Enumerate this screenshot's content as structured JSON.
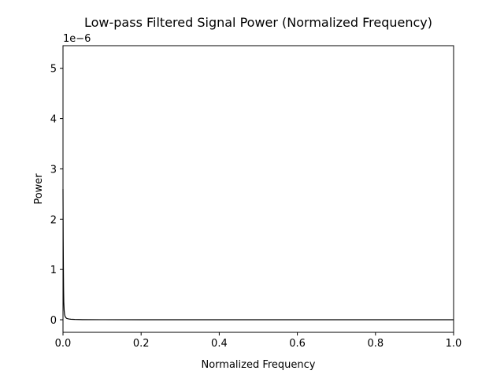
{
  "chart_data": {
    "type": "line",
    "title": "Low-pass Filtered Signal Power (Normalized Frequency)",
    "xlabel": "Normalized Frequency",
    "ylabel": "Power",
    "y_offset_label": "1e−6",
    "xlim": [
      0.0,
      1.0
    ],
    "ylim": [
      -2.5e-07,
      5.45e-06
    ],
    "x_ticks": [
      0.0,
      0.2,
      0.4,
      0.6,
      0.8,
      1.0
    ],
    "x_tick_labels": [
      "0.0",
      "0.2",
      "0.4",
      "0.6",
      "0.8",
      "1.0"
    ],
    "y_ticks": [
      0.0,
      1e-06,
      2e-06,
      3e-06,
      4e-06,
      5e-06
    ],
    "y_tick_labels": [
      "0",
      "1",
      "2",
      "3",
      "4",
      "5"
    ],
    "grid": false,
    "series": [
      {
        "name": "Power",
        "color": "#000000",
        "x": [
          0.0,
          0.0005,
          0.001,
          0.0015,
          0.002,
          0.003,
          0.004,
          0.005,
          0.006,
          0.008,
          0.01,
          0.015,
          0.02,
          0.03,
          0.05,
          0.1,
          0.2,
          0.4,
          0.6,
          0.8,
          1.0
        ],
        "y": [
          2.6e-06,
          1.6e-06,
          1e-06,
          6e-07,
          3.5e-07,
          1.8e-07,
          1.1e-07,
          7.5e-08,
          5.5e-08,
          3.5e-08,
          2.5e-08,
          1.5e-08,
          1e-08,
          6e-09,
          3e-09,
          1.5e-09,
          8e-10,
          4e-10,
          2e-10,
          1e-10,
          5e-11
        ]
      }
    ]
  }
}
